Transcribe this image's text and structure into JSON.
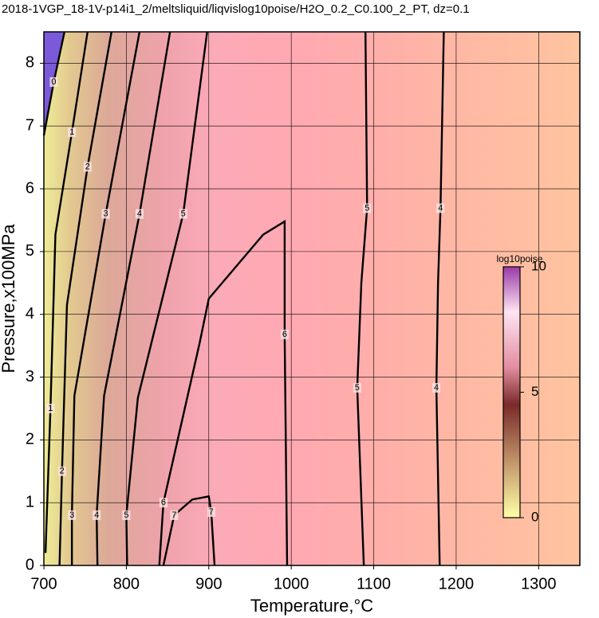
{
  "chart_data": {
    "type": "contour",
    "title": "2018-1VGP_18-1V-p14i1_2/meltsliquid/liqvislog10poise/H2O_0.2_C0.100_2_PT, dz=0.1",
    "x_label": "Temperature,°C",
    "y_label": "Pressure,x100MPa",
    "xlim": [
      700,
      1350
    ],
    "ylim": [
      0,
      8.5
    ],
    "xticks": [
      700,
      800,
      900,
      1000,
      1100,
      1200,
      1300
    ],
    "yticks": [
      0,
      1,
      2,
      3,
      4,
      5,
      6,
      7,
      8
    ],
    "grid": true,
    "contours": [
      {
        "level": 0,
        "x": [
          700,
          712,
          725
        ],
        "y": [
          6.85,
          7.7,
          8.5
        ]
      },
      {
        "level": 1,
        "x": [
          702,
          708,
          714,
          734,
          753
        ],
        "y": [
          0.2,
          2.5,
          5.27,
          6.9,
          8.5
        ]
      },
      {
        "level": 2,
        "x": [
          719,
          722,
          728,
          753,
          782
        ],
        "y": [
          0,
          1.5,
          4.15,
          6.35,
          8.5
        ]
      },
      {
        "level": 3,
        "x": [
          734,
          734,
          737,
          775,
          816
        ],
        "y": [
          0,
          0.8,
          2.7,
          5.6,
          8.5
        ]
      },
      {
        "level": 4,
        "x": [
          765,
          764,
          773,
          816,
          853
        ],
        "y": [
          0,
          0.8,
          2.7,
          5.6,
          8.5
        ]
      },
      {
        "level": 5,
        "x": [
          801,
          800,
          814,
          869,
          898
        ],
        "y": [
          0,
          0.8,
          2.67,
          5.6,
          8.5
        ]
      },
      {
        "level": 6,
        "x": [
          840,
          845,
          889,
          900,
          966,
          992,
          992,
          995
        ],
        "y": [
          0,
          1.0,
          3.55,
          4.25,
          5.27,
          5.48,
          3.68,
          0
        ]
      },
      {
        "level": 7,
        "x": [
          845,
          858,
          880,
          900,
          903,
          907
        ],
        "y": [
          0,
          0.8,
          1.05,
          1.1,
          0.85,
          0
        ]
      },
      {
        "level": 5,
        "x": [
          1088,
          1080,
          1085,
          1092,
          1090
        ],
        "y": [
          0,
          2.83,
          4.5,
          5.69,
          8.5
        ]
      },
      {
        "level": 4,
        "x": [
          1180,
          1176,
          1178,
          1181,
          1185
        ],
        "y": [
          0,
          2.83,
          4.5,
          5.69,
          8.5
        ]
      }
    ],
    "colorbar": {
      "label": "log10poise",
      "lim": [
        0,
        10
      ],
      "ticks": [
        0,
        5,
        10
      ]
    }
  }
}
